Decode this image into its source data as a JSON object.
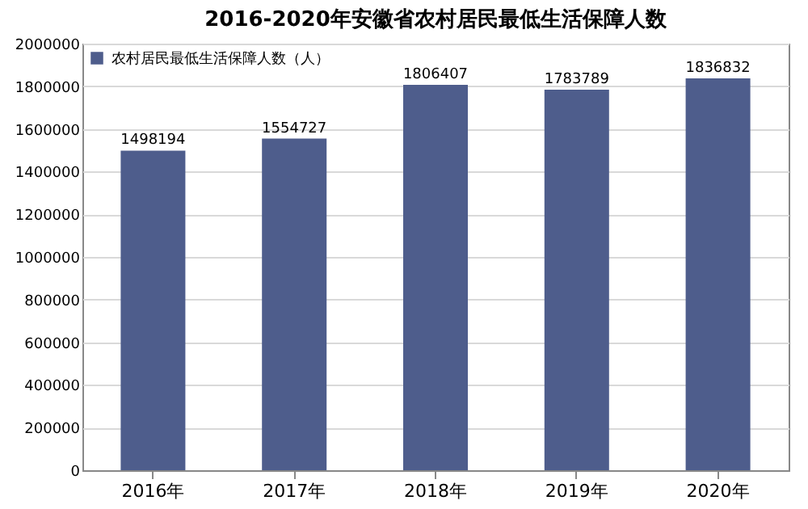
{
  "chart_data": {
    "type": "bar",
    "title": "2016-2020年安徽省农村居民最低生活保障人数",
    "categories": [
      "2016年",
      "2017年",
      "2018年",
      "2019年",
      "2020年"
    ],
    "series": [
      {
        "name": "农村居民最低生活保障人数（人）",
        "color": "#4e5d8c",
        "values": [
          1498194,
          1554727,
          1806407,
          1783789,
          1836832
        ]
      }
    ],
    "ylim": [
      0,
      2000000
    ],
    "yticks": [
      0,
      200000,
      400000,
      600000,
      800000,
      1000000,
      1200000,
      1400000,
      1600000,
      1800000,
      2000000
    ],
    "grid": "y",
    "legend": "top left",
    "data_labels": true
  }
}
